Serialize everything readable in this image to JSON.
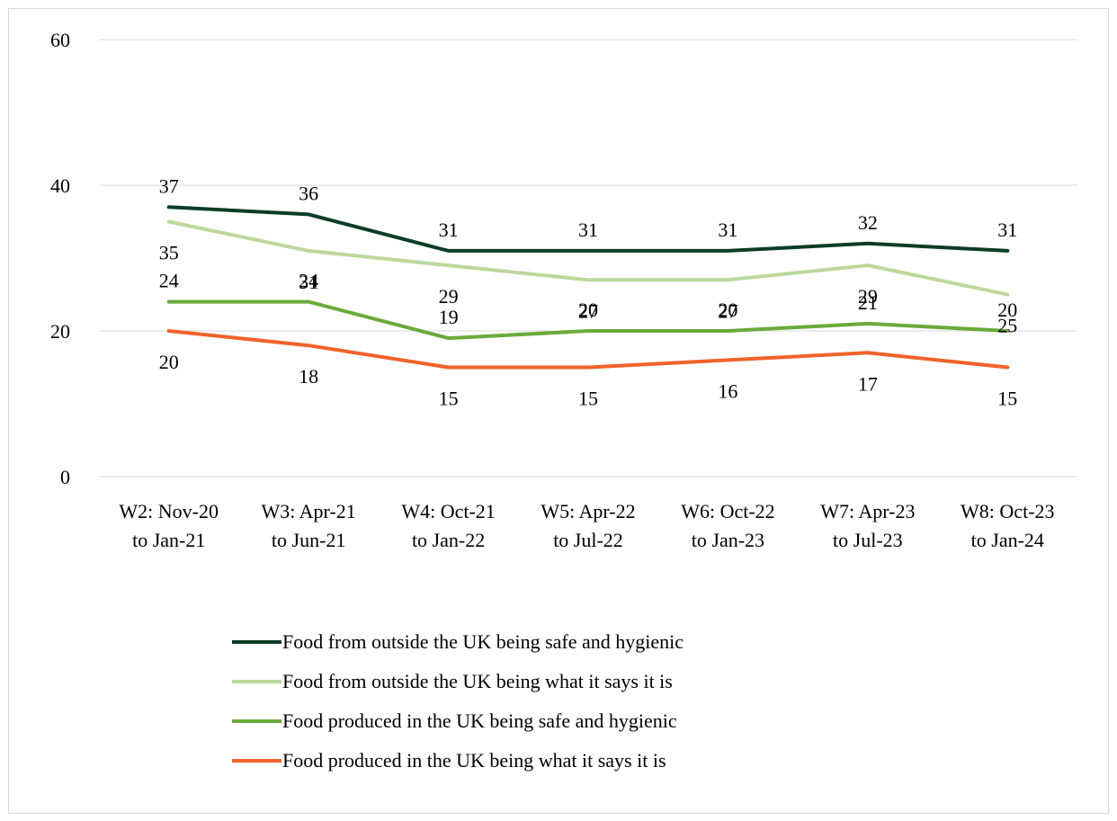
{
  "chart_data": {
    "type": "line",
    "categories": [
      [
        "W2: Nov-20",
        "to Jan-21"
      ],
      [
        "W3: Apr-21",
        "to Jun-21"
      ],
      [
        "W4: Oct-21",
        "to Jan-22"
      ],
      [
        "W5: Apr-22",
        "to Jul-22"
      ],
      [
        "W6: Oct-22",
        "to Jan-23"
      ],
      [
        "W7: Apr-23",
        "to Jul-23"
      ],
      [
        "W8: Oct-23",
        "to Jan-24"
      ]
    ],
    "ylim": [
      0,
      60
    ],
    "yticks": [
      "0",
      "20",
      "40",
      "60"
    ],
    "grid": true,
    "legend_position": "bottom",
    "series": [
      {
        "name": "Food from outside the UK being safe and hygienic",
        "color": "#0b3d26",
        "values": [
          37,
          36,
          31,
          31,
          31,
          32,
          31
        ],
        "label_placement": "above"
      },
      {
        "name": "Food from outside the UK being what it says it is",
        "color": "#bcd89c",
        "values": [
          35,
          31,
          29,
          27,
          27,
          29,
          25
        ],
        "label_placement": "below"
      },
      {
        "name": "Food produced in the UK being safe and hygienic",
        "color": "#6aaa3a",
        "values": [
          24,
          24,
          19,
          20,
          20,
          21,
          20
        ],
        "label_placement": "above"
      },
      {
        "name": "Food produced in the UK being what it says it is",
        "color": "#f0622a",
        "values": [
          20,
          18,
          15,
          15,
          16,
          17,
          15
        ],
        "label_placement": "below"
      }
    ]
  }
}
